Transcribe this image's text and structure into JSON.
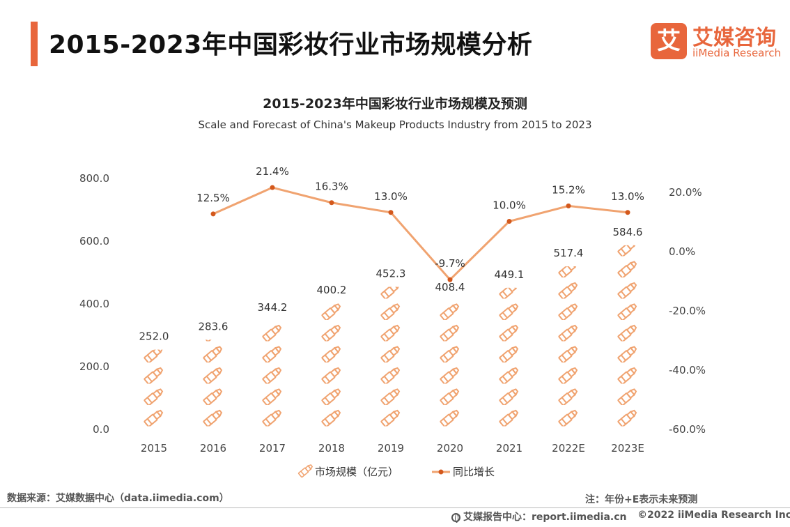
{
  "header": {
    "title": "2015-2023年中国彩妆行业市场规模分析",
    "logo_mark": "艾",
    "logo_cn": "艾媒咨询",
    "logo_en": "iiMedia Research"
  },
  "chart_data": {
    "type": "bar+line",
    "title": "2015-2023年中国彩妆行业市场规模及预测",
    "subtitle": "Scale and Forecast of China's Makeup Products Industry from 2015 to 2023",
    "categories": [
      "2015",
      "2016",
      "2017",
      "2018",
      "2019",
      "2020",
      "2021",
      "2022E",
      "2023E"
    ],
    "series": [
      {
        "name": "市场规模（亿元）",
        "type": "pictorial-bar",
        "axis": "left",
        "values": [
          252.0,
          283.6,
          344.2,
          400.2,
          452.3,
          408.4,
          449.1,
          517.4,
          584.6
        ],
        "labels": [
          "252.0",
          "283.6",
          "344.2",
          "400.2",
          "452.3",
          "408.4",
          "449.1",
          "517.4",
          "584.6"
        ],
        "color": "#f0a370"
      },
      {
        "name": "同比增长",
        "type": "line",
        "axis": "right",
        "values": [
          null,
          12.5,
          21.4,
          16.3,
          13.0,
          -9.7,
          10.0,
          15.2,
          13.0
        ],
        "labels": [
          "",
          "12.5%",
          "21.4%",
          "16.3%",
          "13.0%",
          "-9.7%",
          "10.0%",
          "15.2%",
          "13.0%"
        ],
        "color": "#f0a370",
        "marker_color": "#d3581c"
      }
    ],
    "y_left": {
      "range": [
        0,
        800
      ],
      "ticks": [
        "0.0",
        "200.0",
        "400.0",
        "600.0",
        "800.0"
      ]
    },
    "y_right": {
      "range": [
        -60,
        20
      ],
      "ticks": [
        "-60.0%",
        "-40.0%",
        "-20.0%",
        "0.0%",
        "20.0%"
      ]
    },
    "legend": [
      "市场规模（亿元）",
      "同比增长"
    ],
    "legend_position": "bottom",
    "grid": false
  },
  "footer": {
    "source": "数据来源：艾媒数据中心（data.iimedia.com）",
    "note": "注：年份+E表示未来预测",
    "report": "艾媒报告中心：report.iimedia.cn",
    "copyright": "©2022  iiMedia Research  Inc"
  }
}
